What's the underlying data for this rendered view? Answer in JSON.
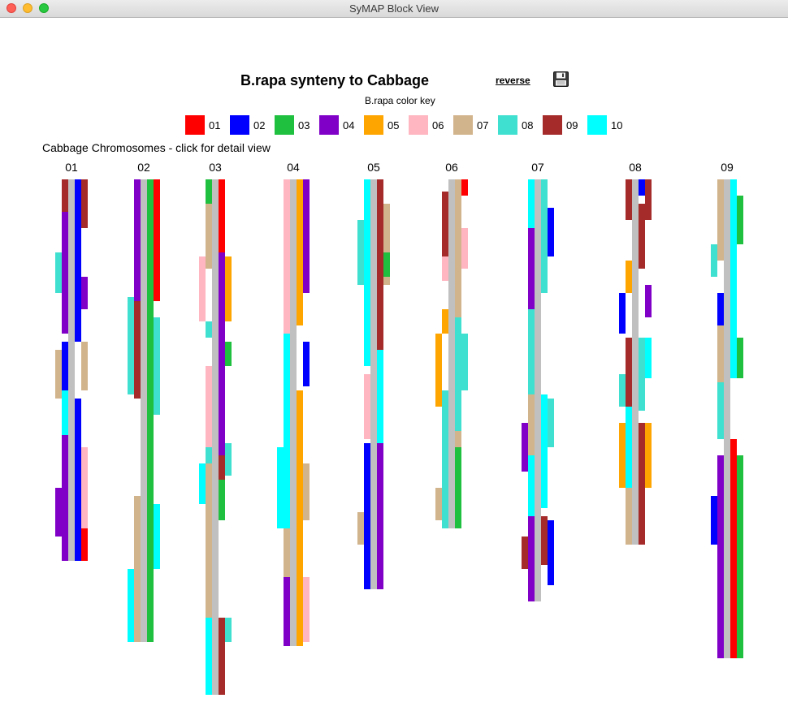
{
  "window": {
    "title": "SyMAP Block View"
  },
  "header": {
    "title": "B.rapa synteny to Cabbage",
    "reverse_label": "reverse",
    "save_icon": "floppy-disk-icon"
  },
  "color_key": {
    "title": "B.rapa color key",
    "items": [
      {
        "label": "01",
        "color": "#ff0000"
      },
      {
        "label": "02",
        "color": "#0000ff"
      },
      {
        "label": "03",
        "color": "#1fbf3f"
      },
      {
        "label": "04",
        "color": "#8000c8"
      },
      {
        "label": "05",
        "color": "#ffa500"
      },
      {
        "label": "06",
        "color": "#ffb6c1"
      },
      {
        "label": "07",
        "color": "#d2b48c"
      },
      {
        "label": "08",
        "color": "#40e0d0"
      },
      {
        "label": "09",
        "color": "#a52a2a"
      },
      {
        "label": "10",
        "color": "#00ffff"
      }
    ]
  },
  "reference": {
    "caption": "Cabbage Chromosomes - click for detail view",
    "chromosome_color": "#c0c0c0",
    "chromosomes": [
      {
        "label": "01",
        "len": 470,
        "blocks": [
          [
            -1,
            0,
            15,
            4
          ],
          [
            -1,
            0,
            20,
            9
          ],
          [
            -1,
            15,
            50,
            9
          ],
          [
            -1,
            40,
            150,
            4
          ],
          [
            -2,
            90,
            50,
            8
          ],
          [
            -1,
            200,
            60,
            2
          ],
          [
            -2,
            210,
            60,
            7
          ],
          [
            -1,
            260,
            60,
            10
          ],
          [
            -1,
            315,
            155,
            4
          ],
          [
            -2,
            380,
            60,
            4
          ],
          [
            1,
            0,
            200,
            2
          ],
          [
            2,
            0,
            60,
            9
          ],
          [
            2,
            120,
            40,
            4
          ],
          [
            2,
            200,
            60,
            7
          ],
          [
            1,
            270,
            200,
            2
          ],
          [
            2,
            330,
            140,
            6
          ],
          [
            2,
            430,
            40,
            1
          ]
        ]
      },
      {
        "label": "02",
        "len": 570,
        "blocks": [
          [
            -1,
            0,
            150,
            4
          ],
          [
            -2,
            145,
            120,
            8
          ],
          [
            -1,
            150,
            120,
            9
          ],
          [
            -1,
            390,
            180,
            7
          ],
          [
            -2,
            480,
            90,
            10
          ],
          [
            1,
            0,
            570,
            3
          ],
          [
            2,
            0,
            150,
            1
          ],
          [
            2,
            170,
            120,
            8
          ],
          [
            2,
            400,
            80,
            10
          ]
        ]
      },
      {
        "label": "03",
        "len": 635,
        "blocks": [
          [
            -1,
            0,
            90,
            3
          ],
          [
            -1,
            30,
            80,
            7
          ],
          [
            -2,
            95,
            80,
            6
          ],
          [
            -1,
            175,
            20,
            8
          ],
          [
            -1,
            230,
            120,
            6
          ],
          [
            -1,
            330,
            40,
            8
          ],
          [
            -1,
            350,
            190,
            7
          ],
          [
            -2,
            350,
            50,
            10
          ],
          [
            -1,
            540,
            95,
            10
          ],
          [
            1,
            0,
            90,
            1
          ],
          [
            1,
            90,
            290,
            4
          ],
          [
            1,
            340,
            60,
            9
          ],
          [
            2,
            95,
            80,
            5
          ],
          [
            2,
            200,
            30,
            3
          ],
          [
            2,
            325,
            40,
            8
          ],
          [
            1,
            370,
            50,
            3
          ],
          [
            1,
            540,
            95,
            9
          ],
          [
            2,
            540,
            30,
            8
          ]
        ]
      },
      {
        "label": "04",
        "len": 575,
        "blocks": [
          [
            -1,
            0,
            190,
            6
          ],
          [
            -1,
            190,
            70,
            10
          ],
          [
            -1,
            260,
            170,
            10
          ],
          [
            -2,
            330,
            100,
            10
          ],
          [
            -1,
            430,
            60,
            7
          ],
          [
            -1,
            490,
            85,
            4
          ],
          [
            1,
            0,
            180,
            5
          ],
          [
            1,
            260,
            315,
            5
          ],
          [
            2,
            0,
            140,
            4
          ],
          [
            2,
            200,
            55,
            2
          ],
          [
            2,
            350,
            70,
            7
          ],
          [
            2,
            490,
            80,
            6
          ]
        ]
      },
      {
        "label": "05",
        "len": 505,
        "blocks": [
          [
            -1,
            0,
            230,
            10
          ],
          [
            -2,
            50,
            80,
            8
          ],
          [
            -1,
            240,
            80,
            6
          ],
          [
            -1,
            325,
            180,
            2
          ],
          [
            -2,
            410,
            40,
            7
          ],
          [
            1,
            0,
            210,
            9
          ],
          [
            1,
            210,
            120,
            10
          ],
          [
            2,
            30,
            100,
            7
          ],
          [
            2,
            90,
            30,
            3
          ],
          [
            1,
            325,
            180,
            4
          ]
        ]
      },
      {
        "label": "06",
        "len": 430,
        "blocks": [
          [
            -1,
            15,
            80,
            9
          ],
          [
            -1,
            95,
            30,
            6
          ],
          [
            -1,
            160,
            30,
            5
          ],
          [
            -2,
            190,
            90,
            5
          ],
          [
            -1,
            260,
            170,
            8
          ],
          [
            -2,
            380,
            40,
            7
          ],
          [
            1,
            0,
            430,
            7
          ],
          [
            2,
            0,
            20,
            1
          ],
          [
            2,
            60,
            50,
            6
          ],
          [
            1,
            170,
            140,
            8
          ],
          [
            2,
            190,
            70,
            8
          ],
          [
            1,
            330,
            100,
            3
          ]
        ]
      },
      {
        "label": "07",
        "len": 520,
        "blocks": [
          [
            -1,
            0,
            90,
            10
          ],
          [
            -1,
            60,
            100,
            4
          ],
          [
            -1,
            160,
            110,
            8
          ],
          [
            -1,
            265,
            150,
            7
          ],
          [
            -2,
            300,
            60,
            4
          ],
          [
            -1,
            340,
            80,
            10
          ],
          [
            -1,
            415,
            105,
            4
          ],
          [
            -2,
            440,
            40,
            9
          ],
          [
            1,
            0,
            140,
            8
          ],
          [
            2,
            35,
            60,
            2
          ],
          [
            1,
            265,
            140,
            10
          ],
          [
            2,
            270,
            60,
            8
          ],
          [
            1,
            415,
            60,
            9
          ],
          [
            2,
            420,
            80,
            2
          ]
        ]
      },
      {
        "label": "08",
        "len": 450,
        "blocks": [
          [
            -1,
            0,
            50,
            9
          ],
          [
            -1,
            100,
            40,
            5
          ],
          [
            -2,
            140,
            50,
            2
          ],
          [
            -1,
            195,
            100,
            9
          ],
          [
            -2,
            240,
            40,
            8
          ],
          [
            -1,
            280,
            100,
            10
          ],
          [
            -2,
            300,
            80,
            5
          ],
          [
            -1,
            380,
            70,
            7
          ],
          [
            1,
            0,
            20,
            2
          ],
          [
            2,
            0,
            50,
            9
          ],
          [
            1,
            30,
            80,
            9
          ],
          [
            2,
            130,
            40,
            4
          ],
          [
            1,
            195,
            90,
            8
          ],
          [
            2,
            195,
            50,
            10
          ],
          [
            1,
            300,
            150,
            9
          ],
          [
            2,
            300,
            80,
            5
          ]
        ]
      },
      {
        "label": "09",
        "len": 590,
        "blocks": [
          [
            -1,
            0,
            100,
            7
          ],
          [
            -2,
            80,
            40,
            8
          ],
          [
            -1,
            140,
            40,
            2
          ],
          [
            -1,
            180,
            70,
            7
          ],
          [
            -1,
            250,
            70,
            8
          ],
          [
            -1,
            340,
            250,
            4
          ],
          [
            -2,
            390,
            60,
            2
          ],
          [
            1,
            0,
            245,
            10
          ],
          [
            2,
            20,
            60,
            3
          ],
          [
            2,
            195,
            50,
            3
          ],
          [
            1,
            320,
            270,
            1
          ],
          [
            2,
            340,
            250,
            3
          ]
        ]
      }
    ]
  }
}
